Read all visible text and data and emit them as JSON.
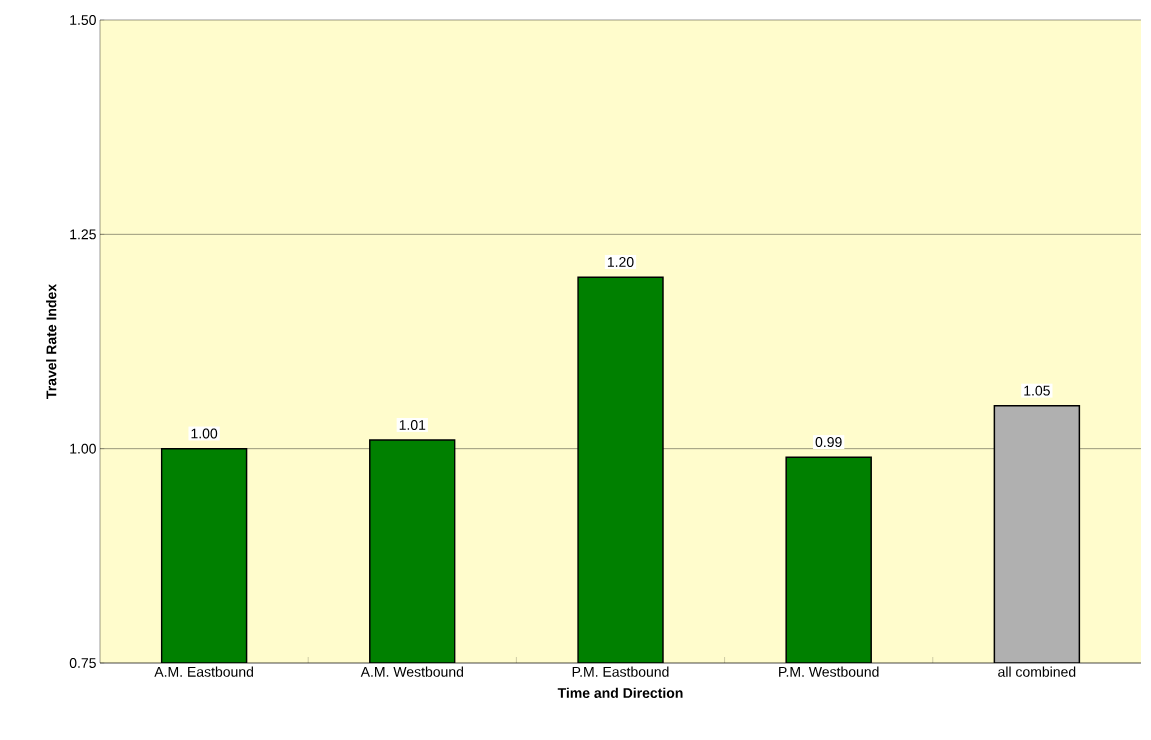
{
  "chart_data": {
    "type": "bar",
    "xlabel": "Time and Direction",
    "ylabel": "Travel Rate Index",
    "categories": [
      "A.M. Eastbound",
      "A.M. Westbound",
      "P.M. Eastbound",
      "P.M. Westbound",
      "all combined"
    ],
    "values": [
      1.0,
      1.01,
      1.2,
      0.99,
      1.05
    ],
    "value_labels": [
      "1.00",
      "1.01",
      "1.20",
      "0.99",
      "1.05"
    ],
    "colors": [
      "#008000",
      "#008000",
      "#008000",
      "#008000",
      "#b0b0b0"
    ],
    "ylim": [
      0.75,
      1.5
    ],
    "yticks": [
      {
        "value": 0.75,
        "label": "0.75"
      },
      {
        "value": 1.0,
        "label": "1.00"
      },
      {
        "value": 1.25,
        "label": "1.25"
      },
      {
        "value": 1.5,
        "label": "1.50"
      }
    ],
    "grid": "y"
  }
}
